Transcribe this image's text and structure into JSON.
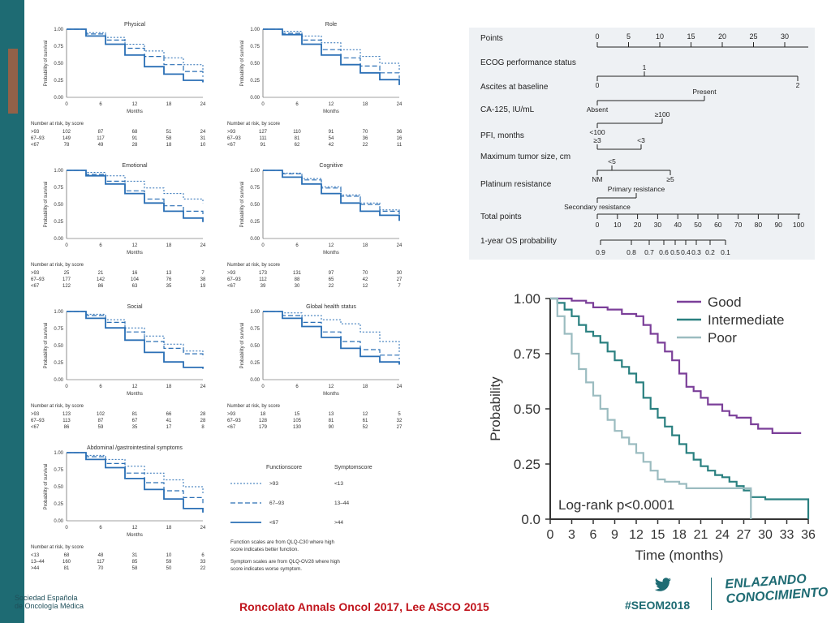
{
  "footer": {
    "citation": "Roncolato Annals Oncol 2017, Lee ASCO 2015",
    "hashtag": "#SEOM2018",
    "brand_line1": "Sociedad Española",
    "brand_line2": "de Oncología Médica",
    "logo_line1": "ENLAZANDO",
    "logo_line2": "CONOCIMIENTO"
  },
  "colors": {
    "teal": "#1e6b73",
    "accent_red": "#c0141c",
    "good": "#7b3f99",
    "intermediate": "#2a8080",
    "poor": "#9bbcc0",
    "km_blue": "#2a6fb5"
  },
  "small_multiples": {
    "y_axis_label": "Probability of survival",
    "x_axis_label": "Months",
    "x_ticks": [
      0,
      6,
      12,
      18,
      24
    ],
    "y_ticks": [
      "1.00",
      "0.75",
      "0.50",
      "0.25",
      "0.00"
    ],
    "risk_header": "Number at risk, by score",
    "panels": [
      {
        "title": "Physical",
        "rows": [
          [
            ">93",
            "102",
            "87",
            "68",
            "51",
            "24"
          ],
          [
            "67–93",
            "149",
            "117",
            "91",
            "58",
            "31"
          ],
          [
            "<67",
            "78",
            "49",
            "28",
            "18",
            "10"
          ]
        ],
        "series": [
          [
            1,
            0.95,
            0.88,
            0.78,
            0.68,
            0.58,
            0.48,
            0.4
          ],
          [
            1,
            0.93,
            0.84,
            0.72,
            0.6,
            0.48,
            0.38,
            0.3
          ],
          [
            1,
            0.9,
            0.78,
            0.62,
            0.45,
            0.34,
            0.25,
            0.22
          ]
        ]
      },
      {
        "title": "Role",
        "rows": [
          [
            ">93",
            "127",
            "110",
            "91",
            "70",
            "36"
          ],
          [
            "67–93",
            "111",
            "81",
            "54",
            "36",
            "16"
          ],
          [
            "<67",
            "91",
            "62",
            "42",
            "22",
            "11"
          ]
        ],
        "series": [
          [
            1,
            0.97,
            0.9,
            0.8,
            0.7,
            0.6,
            0.5,
            0.4
          ],
          [
            1,
            0.94,
            0.84,
            0.7,
            0.58,
            0.46,
            0.36,
            0.28
          ],
          [
            1,
            0.92,
            0.78,
            0.62,
            0.48,
            0.36,
            0.26,
            0.18
          ]
        ]
      },
      {
        "title": "Emotional",
        "rows": [
          [
            ">93",
            "25",
            "21",
            "16",
            "13",
            "7"
          ],
          [
            "67–93",
            "177",
            "142",
            "104",
            "76",
            "38"
          ],
          [
            "<67",
            "122",
            "86",
            "63",
            "35",
            "19"
          ]
        ],
        "series": [
          [
            1,
            0.97,
            0.92,
            0.84,
            0.74,
            0.66,
            0.58,
            0.52
          ],
          [
            1,
            0.94,
            0.84,
            0.7,
            0.58,
            0.48,
            0.4,
            0.32
          ],
          [
            1,
            0.92,
            0.8,
            0.66,
            0.52,
            0.4,
            0.3,
            0.24
          ]
        ]
      },
      {
        "title": "Cognitive",
        "rows": [
          [
            ">93",
            "173",
            "131",
            "97",
            "70",
            "30"
          ],
          [
            "67–93",
            "112",
            "88",
            "65",
            "42",
            "27"
          ],
          [
            "<67",
            "39",
            "30",
            "22",
            "12",
            "7"
          ]
        ],
        "series": [
          [
            1,
            0.96,
            0.88,
            0.76,
            0.64,
            0.52,
            0.42,
            0.32
          ],
          [
            1,
            0.95,
            0.86,
            0.74,
            0.62,
            0.5,
            0.4,
            0.32
          ],
          [
            1,
            0.9,
            0.8,
            0.66,
            0.52,
            0.4,
            0.34,
            0.26
          ]
        ]
      },
      {
        "title": "Social",
        "rows": [
          [
            ">93",
            "123",
            "102",
            "81",
            "66",
            "28"
          ],
          [
            "67–93",
            "113",
            "87",
            "67",
            "41",
            "28"
          ],
          [
            "<67",
            "86",
            "59",
            "35",
            "17",
            "8"
          ]
        ],
        "series": [
          [
            1,
            0.96,
            0.88,
            0.76,
            0.64,
            0.52,
            0.42,
            0.34
          ],
          [
            1,
            0.94,
            0.84,
            0.7,
            0.56,
            0.46,
            0.38,
            0.32
          ],
          [
            1,
            0.9,
            0.76,
            0.58,
            0.4,
            0.26,
            0.18,
            0.16
          ]
        ]
      },
      {
        "title": "Global health status",
        "rows": [
          [
            ">93",
            "18",
            "15",
            "13",
            "12",
            "5"
          ],
          [
            "67–93",
            "128",
            "105",
            "81",
            "61",
            "32"
          ],
          [
            "<67",
            "179",
            "130",
            "90",
            "52",
            "27"
          ]
        ],
        "series": [
          [
            1,
            0.98,
            0.94,
            0.88,
            0.82,
            0.7,
            0.56,
            0.4
          ],
          [
            1,
            0.94,
            0.84,
            0.7,
            0.56,
            0.44,
            0.36,
            0.3
          ],
          [
            1,
            0.9,
            0.78,
            0.62,
            0.46,
            0.34,
            0.26,
            0.22
          ]
        ]
      },
      {
        "title": "Abdominal /gastrointestinal symptoms",
        "rows": [
          [
            "<13",
            "68",
            "48",
            "31",
            "10",
            "6"
          ],
          [
            "13–44",
            "160",
            "117",
            "85",
            "59",
            "33"
          ],
          [
            ">44",
            "81",
            "70",
            "58",
            "50",
            "22"
          ]
        ],
        "series": [
          [
            1,
            0.96,
            0.9,
            0.8,
            0.7,
            0.6,
            0.5,
            0.4
          ],
          [
            1,
            0.94,
            0.84,
            0.7,
            0.56,
            0.44,
            0.34,
            0.26
          ],
          [
            1,
            0.9,
            0.78,
            0.62,
            0.46,
            0.32,
            0.18,
            0.12
          ]
        ]
      }
    ],
    "legend": {
      "col1": "Functionscore",
      "col2": "Symptomscore",
      "rows": [
        [
          ">93",
          "<13"
        ],
        [
          "67–93",
          "13–44"
        ],
        [
          "<67",
          ">44"
        ]
      ],
      "note1": "Function scales are from QLQ-C30 where high score indicates better function.",
      "note2": "Symptom scales are from QLQ-OV28 where high score indicates worse symptom."
    }
  },
  "nomogram": {
    "points_label": "Points",
    "points_ticks": [
      "0",
      "5",
      "10",
      "15",
      "20",
      "25",
      "30"
    ],
    "variables": [
      {
        "label": "ECOG performance status",
        "ticks": [
          "0",
          "1",
          "2"
        ]
      },
      {
        "label": "Ascites at baseline",
        "ticks": [
          "Absent",
          "Present"
        ]
      },
      {
        "label": "CA-125, IU/mL",
        "ticks": [
          "<100",
          "≥100"
        ]
      },
      {
        "label": "PFI, months",
        "ticks": [
          "≥3",
          "<3"
        ]
      },
      {
        "label": "Maximum tumor size, cm",
        "ticks": [
          "NM",
          "<5",
          "≥5"
        ]
      },
      {
        "label": "Platinum resistance",
        "ticks": [
          "Secondary resistance",
          "Primary resistance"
        ]
      }
    ],
    "total_label": "Total points",
    "total_ticks": [
      "0",
      "10",
      "20",
      "30",
      "40",
      "50",
      "60",
      "70",
      "80",
      "90",
      "100"
    ],
    "os_label": "1-year OS probability",
    "os_ticks": [
      "0.9",
      "0.8",
      "0.7",
      "0.6",
      "0.5",
      "0.4",
      "0.3",
      "0.2",
      "0.1"
    ]
  },
  "chart_data": {
    "type": "line",
    "title": "",
    "xlabel": "Time (months)",
    "ylabel": "Probability",
    "xlim": [
      0,
      36
    ],
    "ylim": [
      0,
      1
    ],
    "x_ticks": [
      0,
      3,
      6,
      9,
      12,
      15,
      18,
      21,
      24,
      27,
      30,
      33,
      36
    ],
    "y_ticks": [
      "0.0",
      "0.25",
      "0.50",
      "0.75",
      "1.00"
    ],
    "annotation": "Log-rank p<0.0001",
    "legend_position": "top-right",
    "series": [
      {
        "name": "Good",
        "color": "#7b3f99",
        "x": [
          0,
          2,
          3,
          5,
          6,
          8,
          10,
          12,
          13,
          14,
          15,
          16,
          17,
          18,
          19,
          20,
          21,
          22,
          24,
          25,
          26,
          28,
          29,
          31,
          33,
          35
        ],
        "y": [
          1,
          1,
          0.99,
          0.98,
          0.96,
          0.95,
          0.93,
          0.92,
          0.88,
          0.84,
          0.8,
          0.76,
          0.72,
          0.66,
          0.6,
          0.58,
          0.55,
          0.52,
          0.49,
          0.47,
          0.46,
          0.43,
          0.41,
          0.39,
          0.39,
          0.39
        ]
      },
      {
        "name": "Intermediate",
        "color": "#2a8080",
        "x": [
          0,
          1,
          2,
          3,
          4,
          5,
          6,
          7,
          8,
          9,
          10,
          11,
          12,
          13,
          14,
          15,
          16,
          17,
          18,
          19,
          20,
          21,
          22,
          23,
          24,
          25,
          26,
          27,
          28,
          30,
          33,
          35,
          36
        ],
        "y": [
          1,
          0.98,
          0.95,
          0.92,
          0.88,
          0.85,
          0.83,
          0.8,
          0.76,
          0.72,
          0.69,
          0.66,
          0.62,
          0.55,
          0.5,
          0.46,
          0.42,
          0.38,
          0.34,
          0.3,
          0.27,
          0.24,
          0.22,
          0.2,
          0.19,
          0.17,
          0.15,
          0.13,
          0.1,
          0.09,
          0.09,
          0.09,
          0.0
        ]
      },
      {
        "name": "Poor",
        "color": "#9bbcc0",
        "x": [
          0,
          1,
          2,
          3,
          4,
          5,
          6,
          7,
          8,
          9,
          10,
          11,
          12,
          13,
          14,
          15,
          16,
          18,
          19,
          20,
          22,
          24,
          26,
          28
        ],
        "y": [
          1,
          0.92,
          0.84,
          0.75,
          0.68,
          0.62,
          0.56,
          0.5,
          0.45,
          0.4,
          0.37,
          0.34,
          0.3,
          0.26,
          0.22,
          0.18,
          0.17,
          0.16,
          0.14,
          0.14,
          0.14,
          0.14,
          0.14,
          0.0
        ]
      }
    ]
  }
}
